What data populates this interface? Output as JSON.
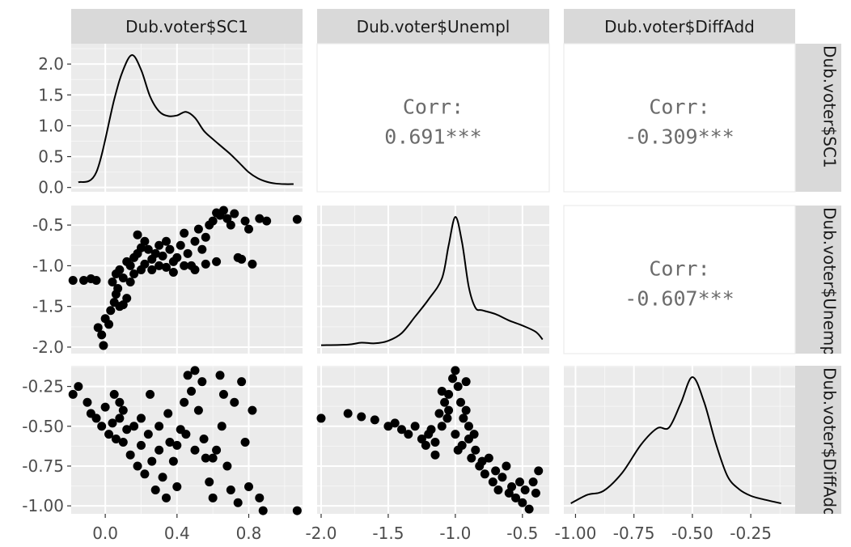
{
  "chart_data": {
    "type": "scatter",
    "variables": [
      "Dub.voter$SC1",
      "Dub.voter$Unempl",
      "Dub.voter$DiffAdd"
    ],
    "panel_layout": "3x3 pairs matrix",
    "axes": {
      "x": [
        {
          "variable": "Dub.voter$SC1",
          "lim": [
            -0.19,
            1.1
          ],
          "ticks": [
            0.0,
            0.4,
            0.8
          ],
          "tick_labels": [
            "0.0",
            "0.4",
            "0.8"
          ]
        },
        {
          "variable": "Dub.voter$Unempl",
          "lim": [
            -2.03,
            -0.3
          ],
          "ticks": [
            -2.0,
            -1.5,
            -1.0,
            -0.5
          ],
          "tick_labels": [
            "-2.0",
            "-1.5",
            "-1.0",
            "-0.5"
          ]
        },
        {
          "variable": "Dub.voter$DiffAdd",
          "lim": [
            -1.05,
            -0.06
          ],
          "ticks": [
            -1.0,
            -0.75,
            -0.5,
            -0.25
          ],
          "tick_labels": [
            "-1.00",
            "-0.75",
            "-0.50",
            "-0.25"
          ]
        }
      ],
      "y": [
        {
          "variable": "Dub.voter$SC1",
          "lim": [
            -0.07,
            2.33
          ],
          "ticks": [
            0.0,
            0.5,
            1.0,
            1.5,
            2.0
          ],
          "tick_labels": [
            "0.0",
            "0.5",
            "1.0",
            "1.5",
            "2.0"
          ]
        },
        {
          "variable": "Dub.voter$Unempl",
          "lim": [
            -2.08,
            -0.26
          ],
          "ticks": [
            -2.0,
            -1.5,
            -1.0,
            -0.5
          ],
          "tick_labels": [
            "-2.0",
            "-1.5",
            "-1.0",
            "-0.5"
          ]
        },
        {
          "variable": "Dub.voter$DiffAdd",
          "lim": [
            -1.05,
            -0.12
          ],
          "ticks": [
            -1.0,
            -0.75,
            -0.5,
            -0.25
          ],
          "tick_labels": [
            "-1.00",
            "-0.75",
            "-0.50",
            "-0.25"
          ]
        }
      ]
    },
    "correlations": [
      {
        "row": 0,
        "col": 1,
        "label": "Corr:",
        "value": "0.691***"
      },
      {
        "row": 0,
        "col": 2,
        "label": "Corr:",
        "value": "-0.309***"
      },
      {
        "row": 1,
        "col": 2,
        "label": "Corr:",
        "value": "-0.607***"
      }
    ],
    "densities": [
      {
        "variable": "Dub.voter$SC1",
        "x": [
          -0.15,
          -0.05,
          0.05,
          0.1,
          0.15,
          0.2,
          0.25,
          0.3,
          0.35,
          0.4,
          0.45,
          0.5,
          0.55,
          0.6,
          0.65,
          0.7,
          0.75,
          0.8,
          0.85,
          0.9,
          0.95,
          1.0,
          1.05
        ],
        "y": [
          0.05,
          0.22,
          1.45,
          1.95,
          2.2,
          1.95,
          1.5,
          1.25,
          1.17,
          1.18,
          1.24,
          1.14,
          0.92,
          0.78,
          0.65,
          0.52,
          0.37,
          0.22,
          0.12,
          0.06,
          0.03,
          0.02,
          0.02
        ]
      },
      {
        "variable": "Dub.voter$Unempl",
        "x": [
          -2.0,
          -1.8,
          -1.7,
          -1.6,
          -1.5,
          -1.4,
          -1.3,
          -1.2,
          -1.1,
          -1.05,
          -1.0,
          -0.95,
          -0.9,
          -0.85,
          -0.8,
          -0.7,
          -0.6,
          -0.5,
          -0.4,
          -0.35
        ],
        "y": [
          0.03,
          0.04,
          0.07,
          0.06,
          0.1,
          0.22,
          0.48,
          0.75,
          1.08,
          1.6,
          2.05,
          1.65,
          0.95,
          0.62,
          0.58,
          0.52,
          0.42,
          0.34,
          0.24,
          0.12
        ]
      },
      {
        "variable": "Dub.voter$DiffAdd",
        "x": [
          -1.02,
          -0.95,
          -0.88,
          -0.8,
          -0.72,
          -0.65,
          -0.6,
          -0.55,
          -0.5,
          -0.45,
          -0.4,
          -0.35,
          -0.3,
          -0.25,
          -0.2,
          -0.12
        ],
        "y": [
          0.12,
          0.38,
          0.5,
          1.05,
          1.9,
          2.4,
          2.42,
          3.15,
          3.95,
          3.2,
          1.95,
          0.95,
          0.55,
          0.35,
          0.25,
          0.12
        ]
      }
    ],
    "scatter_panels": [
      {
        "row": 1,
        "col": 0,
        "x_variable": "Dub.voter$SC1",
        "y_variable": "Dub.voter$Unempl",
        "points": [
          [
            -0.18,
            -1.18
          ],
          [
            -0.12,
            -1.18
          ],
          [
            -0.08,
            -1.16
          ],
          [
            -0.05,
            -1.18
          ],
          [
            -0.04,
            -1.76
          ],
          [
            -0.02,
            -1.85
          ],
          [
            -0.01,
            -1.98
          ],
          [
            0.0,
            -1.65
          ],
          [
            0.02,
            -1.72
          ],
          [
            0.03,
            -1.55
          ],
          [
            0.05,
            -1.45
          ],
          [
            0.06,
            -1.35
          ],
          [
            0.07,
            -1.28
          ],
          [
            0.08,
            -1.5
          ],
          [
            0.1,
            -1.48
          ],
          [
            0.12,
            -1.4
          ],
          [
            0.04,
            -1.2
          ],
          [
            0.06,
            -1.1
          ],
          [
            0.08,
            -1.05
          ],
          [
            0.1,
            -1.15
          ],
          [
            0.12,
            -0.95
          ],
          [
            0.14,
            -1.0
          ],
          [
            0.16,
            -0.9
          ],
          [
            0.18,
            -0.85
          ],
          [
            0.2,
            -0.78
          ],
          [
            0.22,
            -0.7
          ],
          [
            0.18,
            -0.62
          ],
          [
            0.24,
            -0.8
          ],
          [
            0.26,
            -0.92
          ],
          [
            0.28,
            -0.85
          ],
          [
            0.3,
            -0.75
          ],
          [
            0.32,
            -0.88
          ],
          [
            0.34,
            -0.7
          ],
          [
            0.36,
            -0.8
          ],
          [
            0.38,
            -0.95
          ],
          [
            0.4,
            -0.9
          ],
          [
            0.42,
            -0.75
          ],
          [
            0.44,
            -0.6
          ],
          [
            0.46,
            -0.85
          ],
          [
            0.48,
            -1.0
          ],
          [
            0.5,
            -0.7
          ],
          [
            0.52,
            -0.55
          ],
          [
            0.54,
            -0.8
          ],
          [
            0.56,
            -0.65
          ],
          [
            0.58,
            -0.5
          ],
          [
            0.6,
            -0.45
          ],
          [
            0.62,
            -0.35
          ],
          [
            0.64,
            -0.38
          ],
          [
            0.66,
            -0.32
          ],
          [
            0.68,
            -0.42
          ],
          [
            0.7,
            -0.5
          ],
          [
            0.72,
            -0.36
          ],
          [
            0.74,
            -0.9
          ],
          [
            0.76,
            -0.92
          ],
          [
            0.78,
            -0.45
          ],
          [
            0.8,
            -0.55
          ],
          [
            0.82,
            -0.98
          ],
          [
            0.86,
            -0.42
          ],
          [
            0.9,
            -0.45
          ],
          [
            1.07,
            -0.43
          ],
          [
            0.14,
            -1.2
          ],
          [
            0.16,
            -1.1
          ],
          [
            0.2,
            -1.05
          ],
          [
            0.22,
            -0.98
          ],
          [
            0.26,
            -1.05
          ],
          [
            0.3,
            -1.0
          ],
          [
            0.34,
            -1.02
          ],
          [
            0.38,
            -1.08
          ],
          [
            0.44,
            -1.0
          ],
          [
            0.5,
            -1.05
          ],
          [
            0.56,
            -0.98
          ],
          [
            0.62,
            -0.95
          ]
        ]
      },
      {
        "row": 2,
        "col": 0,
        "x_variable": "Dub.voter$SC1",
        "y_variable": "Dub.voter$DiffAdd",
        "points": [
          [
            -0.18,
            -0.3
          ],
          [
            -0.15,
            -0.25
          ],
          [
            -0.1,
            -0.35
          ],
          [
            -0.08,
            -0.42
          ],
          [
            -0.05,
            -0.45
          ],
          [
            -0.02,
            -0.5
          ],
          [
            0.0,
            -0.38
          ],
          [
            0.02,
            -0.55
          ],
          [
            0.04,
            -0.48
          ],
          [
            0.06,
            -0.58
          ],
          [
            0.08,
            -0.45
          ],
          [
            0.1,
            -0.6
          ],
          [
            0.12,
            -0.52
          ],
          [
            0.14,
            -0.68
          ],
          [
            0.16,
            -0.5
          ],
          [
            0.18,
            -0.75
          ],
          [
            0.2,
            -0.62
          ],
          [
            0.22,
            -0.8
          ],
          [
            0.24,
            -0.55
          ],
          [
            0.26,
            -0.72
          ],
          [
            0.28,
            -0.9
          ],
          [
            0.3,
            -0.65
          ],
          [
            0.32,
            -0.82
          ],
          [
            0.34,
            -0.95
          ],
          [
            0.36,
            -0.6
          ],
          [
            0.38,
            -0.72
          ],
          [
            0.4,
            -0.88
          ],
          [
            0.42,
            -0.52
          ],
          [
            0.44,
            -0.35
          ],
          [
            0.46,
            -0.18
          ],
          [
            0.48,
            -0.28
          ],
          [
            0.5,
            -0.15
          ],
          [
            0.52,
            -0.4
          ],
          [
            0.54,
            -0.22
          ],
          [
            0.56,
            -0.7
          ],
          [
            0.58,
            -0.85
          ],
          [
            0.6,
            -0.95
          ],
          [
            0.62,
            -0.65
          ],
          [
            0.64,
            -0.18
          ],
          [
            0.66,
            -0.3
          ],
          [
            0.68,
            -0.75
          ],
          [
            0.7,
            -0.9
          ],
          [
            0.72,
            -0.35
          ],
          [
            0.74,
            -0.98
          ],
          [
            0.76,
            -0.22
          ],
          [
            0.78,
            -0.6
          ],
          [
            0.8,
            -0.88
          ],
          [
            0.82,
            -0.4
          ],
          [
            0.86,
            -0.95
          ],
          [
            0.88,
            -1.03
          ],
          [
            1.07,
            -1.03
          ],
          [
            0.05,
            -0.3
          ],
          [
            0.08,
            -0.35
          ],
          [
            0.1,
            -0.4
          ],
          [
            0.2,
            -0.45
          ],
          [
            0.25,
            -0.3
          ],
          [
            0.3,
            -0.5
          ],
          [
            0.35,
            -0.42
          ],
          [
            0.4,
            -0.62
          ],
          [
            0.45,
            -0.55
          ],
          [
            0.5,
            -0.65
          ],
          [
            0.55,
            -0.58
          ],
          [
            0.6,
            -0.7
          ],
          [
            0.65,
            -0.5
          ]
        ]
      },
      {
        "row": 2,
        "col": 1,
        "x_variable": "Dub.voter$Unempl",
        "y_variable": "Dub.voter$DiffAdd",
        "points": [
          [
            -2.0,
            -0.45
          ],
          [
            -1.8,
            -0.42
          ],
          [
            -1.7,
            -0.44
          ],
          [
            -1.6,
            -0.46
          ],
          [
            -1.5,
            -0.5
          ],
          [
            -1.45,
            -0.48
          ],
          [
            -1.4,
            -0.52
          ],
          [
            -1.35,
            -0.55
          ],
          [
            -1.3,
            -0.5
          ],
          [
            -1.25,
            -0.58
          ],
          [
            -1.2,
            -0.55
          ],
          [
            -1.15,
            -0.6
          ],
          [
            -1.1,
            -0.5
          ],
          [
            -1.05,
            -0.4
          ],
          [
            -1.05,
            -0.3
          ],
          [
            -1.02,
            -0.2
          ],
          [
            -1.0,
            -0.15
          ],
          [
            -0.98,
            -0.25
          ],
          [
            -0.96,
            -0.35
          ],
          [
            -0.94,
            -0.45
          ],
          [
            -1.0,
            -0.55
          ],
          [
            -0.95,
            -0.62
          ],
          [
            -0.9,
            -0.58
          ],
          [
            -0.88,
            -0.7
          ],
          [
            -0.85,
            -0.65
          ],
          [
            -0.82,
            -0.75
          ],
          [
            -0.8,
            -0.72
          ],
          [
            -0.78,
            -0.8
          ],
          [
            -0.75,
            -0.7
          ],
          [
            -0.72,
            -0.85
          ],
          [
            -0.7,
            -0.78
          ],
          [
            -0.68,
            -0.9
          ],
          [
            -0.65,
            -0.82
          ],
          [
            -0.62,
            -0.75
          ],
          [
            -0.6,
            -0.92
          ],
          [
            -0.58,
            -0.88
          ],
          [
            -0.55,
            -0.95
          ],
          [
            -0.52,
            -0.85
          ],
          [
            -0.5,
            -0.98
          ],
          [
            -0.48,
            -0.9
          ],
          [
            -0.45,
            -1.02
          ],
          [
            -0.42,
            -0.85
          ],
          [
            -0.4,
            -0.92
          ],
          [
            -0.38,
            -0.78
          ],
          [
            -1.1,
            -0.28
          ],
          [
            -1.08,
            -0.35
          ],
          [
            -1.06,
            -0.45
          ],
          [
            -1.12,
            -0.42
          ],
          [
            -0.92,
            -0.4
          ],
          [
            -0.92,
            -0.22
          ],
          [
            -1.18,
            -0.52
          ],
          [
            -1.22,
            -0.62
          ],
          [
            -1.15,
            -0.68
          ],
          [
            -0.98,
            -0.65
          ],
          [
            -0.9,
            -0.5
          ],
          [
            -0.86,
            -0.55
          ]
        ]
      }
    ]
  }
}
